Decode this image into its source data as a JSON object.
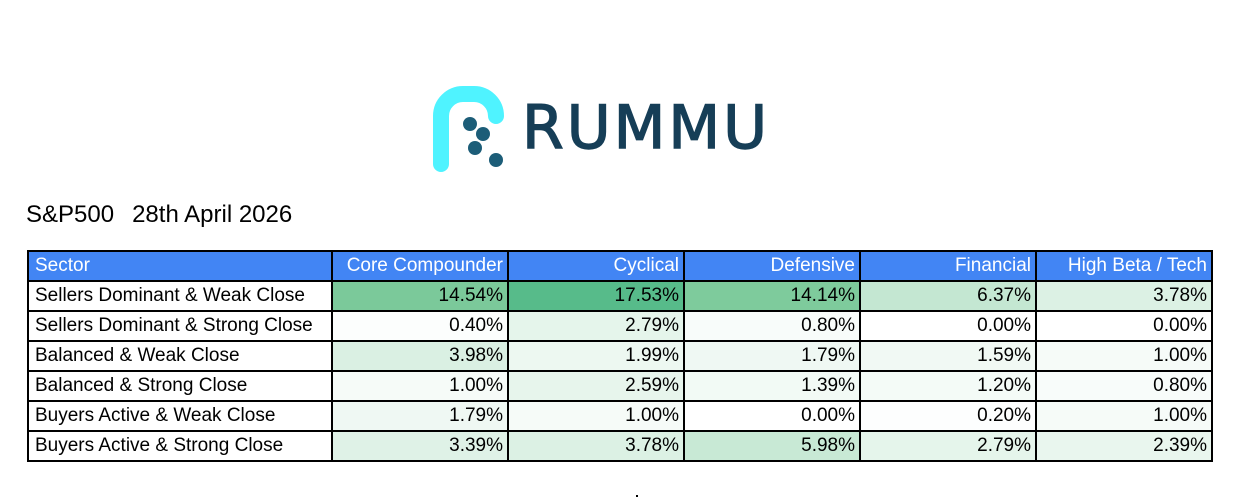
{
  "logo": {
    "wordmark": "RUMMU",
    "colors": {
      "mark": "#4ff3ff",
      "dots": "#1c5d78",
      "word": "#163e57"
    }
  },
  "report": {
    "index": "S&P500",
    "date": "28th April 2026"
  },
  "table": {
    "header_bg": "#4285f4",
    "columns": [
      "Sector",
      "Core Compounder",
      "Cyclical",
      "Defensive",
      "Financial",
      "High Beta / Tech"
    ],
    "rows": [
      {
        "label": "Sellers Dominant & Weak Close",
        "cells": [
          {
            "text": "14.54%",
            "bg": "#7bc99a"
          },
          {
            "text": "17.53%",
            "bg": "#57bb8a"
          },
          {
            "text": "14.14%",
            "bg": "#7ecb9c"
          },
          {
            "text": "6.37%",
            "bg": "#c4e7d2"
          },
          {
            "text": "3.78%",
            "bg": "#dcf1e4"
          }
        ]
      },
      {
        "label": "Sellers Dominant & Strong Close",
        "cells": [
          {
            "text": "0.40%",
            "bg": "#fcfefd"
          },
          {
            "text": "2.79%",
            "bg": "#e5f5eb"
          },
          {
            "text": "0.80%",
            "bg": "#f8fcfa"
          },
          {
            "text": "0.00%",
            "bg": "#ffffff"
          },
          {
            "text": "0.00%",
            "bg": "#ffffff"
          }
        ]
      },
      {
        "label": "Balanced & Weak Close",
        "cells": [
          {
            "text": "3.98%",
            "bg": "#daf0e3"
          },
          {
            "text": "1.99%",
            "bg": "#edf8f1"
          },
          {
            "text": "1.79%",
            "bg": "#eff8f3"
          },
          {
            "text": "1.59%",
            "bg": "#f1f9f4"
          },
          {
            "text": "1.00%",
            "bg": "#f6fbf8"
          }
        ]
      },
      {
        "label": "Balanced & Strong Close",
        "cells": [
          {
            "text": "1.00%",
            "bg": "#f6fbf8"
          },
          {
            "text": "2.59%",
            "bg": "#e7f5ec"
          },
          {
            "text": "1.39%",
            "bg": "#f2faf5"
          },
          {
            "text": "1.20%",
            "bg": "#f4fbf7"
          },
          {
            "text": "0.80%",
            "bg": "#f8fcfa"
          }
        ]
      },
      {
        "label": "Buyers Active & Weak Close",
        "cells": [
          {
            "text": "1.79%",
            "bg": "#eff8f3"
          },
          {
            "text": "1.00%",
            "bg": "#f6fbf8"
          },
          {
            "text": "0.00%",
            "bg": "#ffffff"
          },
          {
            "text": "0.20%",
            "bg": "#fdfefe"
          },
          {
            "text": "1.00%",
            "bg": "#f6fbf8"
          }
        ]
      },
      {
        "label": "Buyers Active & Strong Close",
        "cells": [
          {
            "text": "3.39%",
            "bg": "#dff2e7"
          },
          {
            "text": "3.78%",
            "bg": "#dcf1e4"
          },
          {
            "text": "5.98%",
            "bg": "#c8e9d5"
          },
          {
            "text": "2.79%",
            "bg": "#e5f5eb"
          },
          {
            "text": "2.39%",
            "bg": "#e9f6ee"
          }
        ]
      }
    ]
  }
}
